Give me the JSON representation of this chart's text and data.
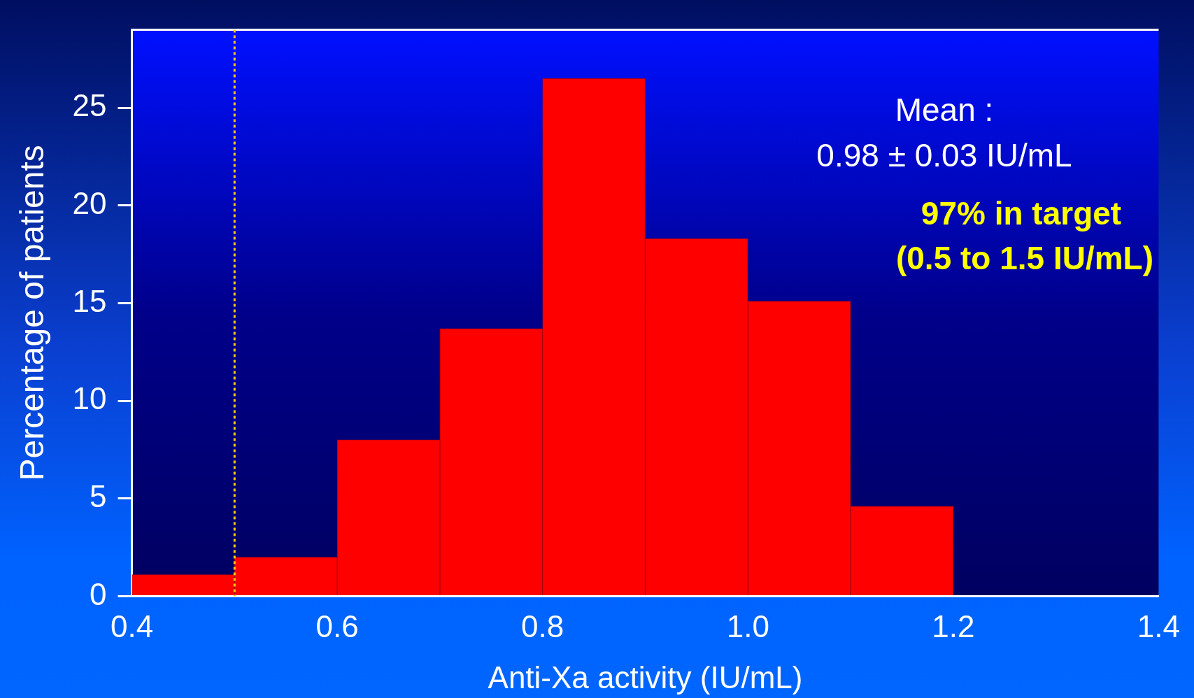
{
  "chart_data": {
    "type": "histogram",
    "xlabel": "Anti-Xa activity (IU/mL)",
    "ylabel": "Percentage of patients",
    "bins": [
      0.4,
      0.5,
      0.6,
      0.7,
      0.8,
      0.9,
      1.0,
      1.1,
      1.2
    ],
    "values": [
      1.1,
      2.0,
      8.0,
      13.7,
      26.5,
      18.3,
      15.1,
      4.6
    ],
    "color": "#ff0000",
    "xlim": [
      0.4,
      1.4
    ],
    "xticks": [
      {
        "value": 0.4,
        "label": "0.4"
      },
      {
        "value": 0.6,
        "label": "0.6"
      },
      {
        "value": 0.8,
        "label": "0.8"
      },
      {
        "value": 1.0,
        "label": "1.0"
      },
      {
        "value": 1.2,
        "label": "1.2"
      },
      {
        "value": 1.4,
        "label": "1.4"
      }
    ],
    "ylim": [
      0,
      29
    ],
    "yticks": [
      0,
      5,
      10,
      15,
      20,
      25
    ],
    "grid": false,
    "legend": false,
    "ref_lines": [
      {
        "axis": "x",
        "value": 0.5,
        "color": "#ffcc00",
        "line_style": "dotted"
      }
    ],
    "annotations": [
      "Mean :",
      "0.98 ± 0.03 IU/mL",
      "97% in target",
      "(0.5 to 1.5 IU/mL)"
    ]
  }
}
